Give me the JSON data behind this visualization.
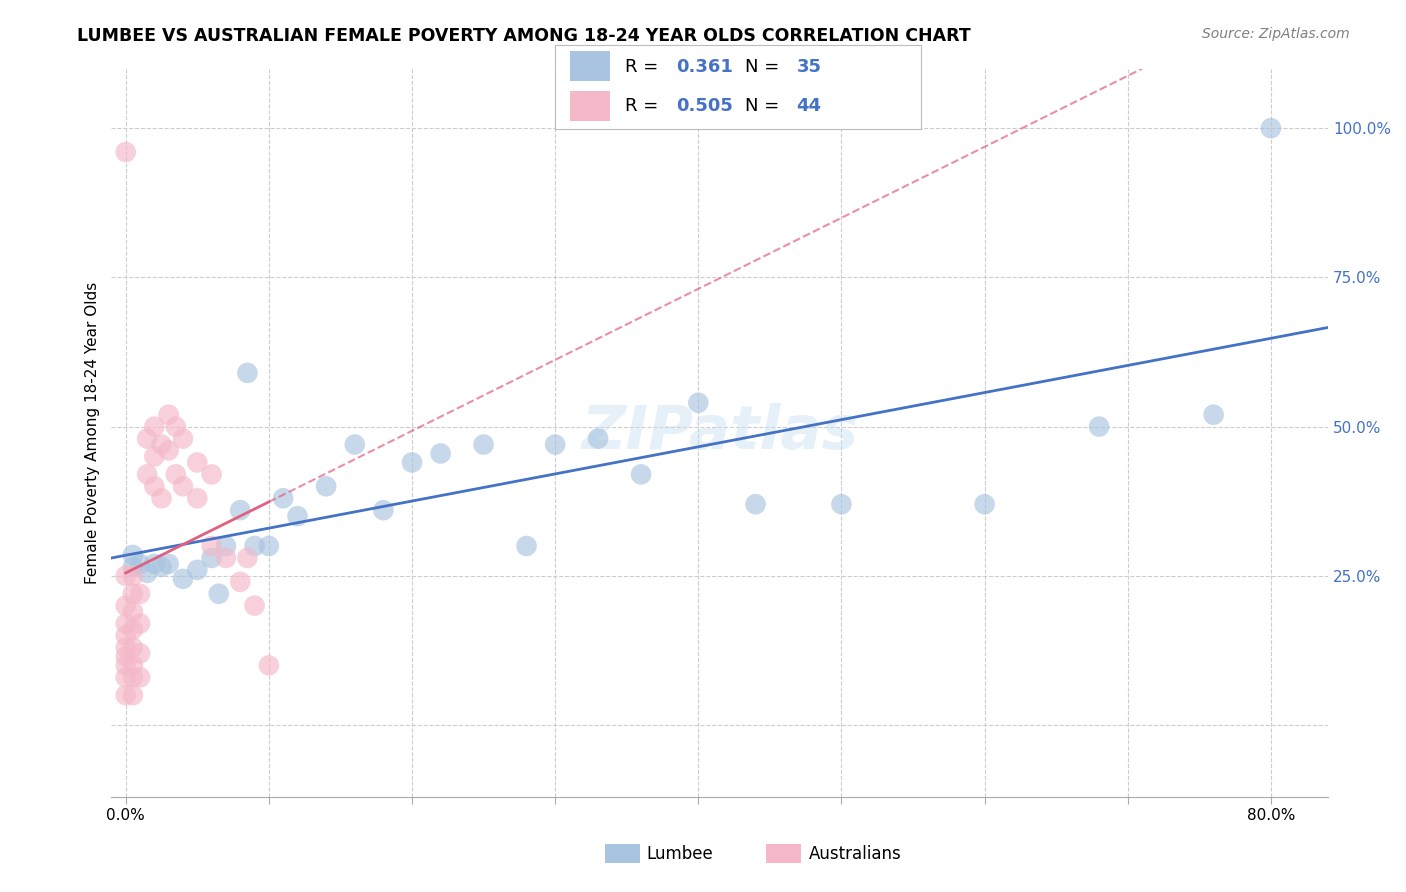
{
  "title": "LUMBEE VS AUSTRALIAN FEMALE POVERTY AMONG 18-24 YEAR OLDS CORRELATION CHART",
  "source": "Source: ZipAtlas.com",
  "ylabel": "Female Poverty Among 18-24 Year Olds",
  "lumbee_R": 0.361,
  "lumbee_N": 35,
  "australian_R": 0.505,
  "australian_N": 44,
  "lumbee_color": "#a8c4e0",
  "australian_color": "#f4b8c8",
  "lumbee_line_color": "#4472c4",
  "australian_line_color": "#e06080",
  "watermark": "ZIPatlas",
  "xlim": [
    -0.01,
    0.84
  ],
  "ylim": [
    -0.12,
    1.1
  ],
  "lumbee_x": [
    0.005,
    0.005,
    0.01,
    0.015,
    0.02,
    0.025,
    0.03,
    0.04,
    0.05,
    0.06,
    0.065,
    0.07,
    0.08,
    0.085,
    0.09,
    0.1,
    0.11,
    0.12,
    0.14,
    0.16,
    0.18,
    0.2,
    0.22,
    0.25,
    0.28,
    0.3,
    0.33,
    0.36,
    0.4,
    0.44,
    0.5,
    0.6,
    0.68,
    0.76,
    0.8
  ],
  "lumbee_y": [
    0.285,
    0.265,
    0.27,
    0.255,
    0.27,
    0.265,
    0.27,
    0.245,
    0.26,
    0.28,
    0.22,
    0.3,
    0.36,
    0.59,
    0.3,
    0.3,
    0.38,
    0.35,
    0.4,
    0.47,
    0.36,
    0.44,
    0.455,
    0.47,
    0.3,
    0.47,
    0.48,
    0.42,
    0.54,
    0.37,
    0.37,
    0.37,
    0.5,
    0.52,
    1.0
  ],
  "australian_x": [
    0.0,
    0.0,
    0.0,
    0.0,
    0.0,
    0.0,
    0.0,
    0.0,
    0.0,
    0.0,
    0.005,
    0.005,
    0.005,
    0.005,
    0.005,
    0.005,
    0.005,
    0.005,
    0.01,
    0.01,
    0.01,
    0.01,
    0.015,
    0.015,
    0.02,
    0.02,
    0.02,
    0.025,
    0.025,
    0.03,
    0.03,
    0.035,
    0.035,
    0.04,
    0.04,
    0.05,
    0.05,
    0.06,
    0.06,
    0.07,
    0.08,
    0.085,
    0.09,
    0.1
  ],
  "australian_y": [
    0.05,
    0.08,
    0.1,
    0.115,
    0.13,
    0.15,
    0.17,
    0.2,
    0.25,
    0.96,
    0.05,
    0.08,
    0.1,
    0.13,
    0.16,
    0.19,
    0.22,
    0.25,
    0.08,
    0.12,
    0.17,
    0.22,
    0.42,
    0.48,
    0.4,
    0.45,
    0.5,
    0.38,
    0.47,
    0.46,
    0.52,
    0.42,
    0.5,
    0.4,
    0.48,
    0.38,
    0.44,
    0.3,
    0.42,
    0.28,
    0.24,
    0.28,
    0.2,
    0.1
  ]
}
